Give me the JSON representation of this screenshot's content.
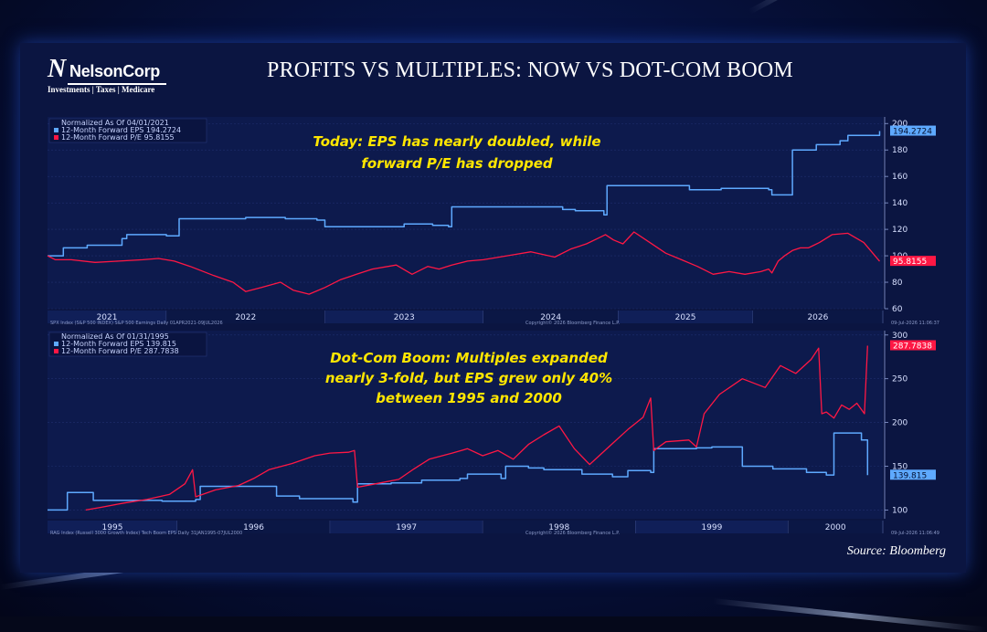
{
  "header": {
    "logo_name": "NelsonCorp",
    "logo_letter": "N",
    "logo_tagline": "Investments | Taxes | Medicare",
    "title": "PROFITS VS MULTIPLES: NOW VS DOT-COM BOOM"
  },
  "source": "Source: Bloomberg",
  "colors": {
    "eps": "#5ea9ff",
    "pe": "#ff1744",
    "annotation": "#ffe600",
    "background": "#0b1541"
  },
  "chart_data": [
    {
      "type": "line",
      "legend": {
        "heading": "Normalized As Of 04/01/2021",
        "items": [
          "12-Month Forward EPS 194.2724",
          "12-Month Forward P/E 95.8155"
        ]
      },
      "annotation": [
        "Today: EPS has nearly doubled, while",
        "forward P/E has dropped"
      ],
      "x_labels": [
        "2021",
        "2022",
        "2023",
        "2024",
        "2025",
        "2026"
      ],
      "y_ticks": [
        60,
        80,
        100,
        120,
        140,
        160,
        180,
        200
      ],
      "ylim": [
        60,
        205
      ],
      "xlim": [
        2021.25,
        2026.52
      ],
      "footer_left": "SPX Index (S&P 500 INDEX) S&P 500 Earnings Daily 01APR2021-09JUL2026",
      "footer_mid": "Copyright© 2026 Bloomberg Finance L.P.",
      "footer_right": "09-Jul-2026 11:06:37",
      "last_values": {
        "eps": "194.2724",
        "pe": "95.8155"
      },
      "series": [
        {
          "name": "12-Month Forward EPS",
          "color": "#5ea9ff",
          "step": true,
          "x": [
            2021.25,
            2021.35,
            2021.5,
            2021.72,
            2021.75,
            2022.0,
            2022.08,
            2022.5,
            2022.75,
            2022.95,
            2023.0,
            2023.5,
            2023.68,
            2023.78,
            2023.8,
            2024.3,
            2024.5,
            2024.58,
            2024.76,
            2024.78,
            2025.3,
            2025.5,
            2025.75,
            2025.8,
            2025.82,
            2025.95,
            2026.1,
            2026.25,
            2026.3,
            2026.5
          ],
          "y": [
            100,
            106,
            108,
            113,
            116,
            115,
            128,
            129,
            128,
            127,
            122,
            124,
            123,
            122,
            137,
            137,
            135,
            134,
            131,
            153,
            150,
            151,
            151,
            150,
            146,
            180,
            184,
            187,
            191,
            194.27
          ]
        },
        {
          "name": "12-Month Forward P/E",
          "color": "#ff1744",
          "step": false,
          "x": [
            2021.25,
            2021.3,
            2021.4,
            2021.55,
            2021.7,
            2021.85,
            2021.95,
            2022.05,
            2022.15,
            2022.3,
            2022.42,
            2022.5,
            2022.6,
            2022.72,
            2022.8,
            2022.9,
            2023.0,
            2023.1,
            2023.2,
            2023.3,
            2023.45,
            2023.55,
            2023.65,
            2023.72,
            2023.8,
            2023.9,
            2024.0,
            2024.1,
            2024.2,
            2024.3,
            2024.45,
            2024.55,
            2024.65,
            2024.72,
            2024.77,
            2024.82,
            2024.88,
            2024.95,
            2025.05,
            2025.15,
            2025.25,
            2025.35,
            2025.45,
            2025.55,
            2025.65,
            2025.75,
            2025.8,
            2025.82,
            2025.86,
            2025.9,
            2025.95,
            2026.0,
            2026.05,
            2026.12,
            2026.2,
            2026.3,
            2026.4,
            2026.5
          ],
          "y": [
            100,
            97,
            97,
            95,
            96,
            97,
            98,
            96,
            92,
            85,
            80,
            73,
            76,
            80,
            74,
            71,
            76,
            82,
            86,
            90,
            93,
            86,
            92,
            90,
            93,
            96,
            97,
            99,
            101,
            103,
            99,
            105,
            109,
            113,
            116,
            112,
            109,
            118,
            110,
            102,
            97,
            92,
            86,
            88,
            86,
            88,
            90,
            87,
            96,
            100,
            104,
            106,
            106,
            110,
            116,
            117,
            110,
            95.82
          ]
        }
      ]
    },
    {
      "type": "line",
      "legend": {
        "heading": "Normalized As Of 01/31/1995",
        "items": [
          "12-Month Forward EPS 139.815",
          "12-Month Forward P/E 287.7838"
        ]
      },
      "annotation": [
        "Dot-Com Boom: Multiples expanded",
        "nearly 3-fold, but EPS grew only 40%",
        "between 1995 and 2000"
      ],
      "x_labels": [
        "1995",
        "1996",
        "1997",
        "1998",
        "1999",
        "2000"
      ],
      "y_ticks": [
        100,
        150,
        200,
        250,
        300
      ],
      "ylim": [
        90,
        305
      ],
      "xlim": [
        1994.75,
        2000.22
      ],
      "footer_left": "RAG Index (Russell 3000 Growth Index) Tech Boom EPS Daily 31JAN1995-07JUL2000",
      "footer_mid": "Copyright© 2026 Bloomberg Finance L.P.",
      "footer_right": "09-Jul-2026 11:06:49",
      "last_values": {
        "eps": "139.815",
        "pe": "287.7838"
      },
      "series": [
        {
          "name": "12-Month Forward EPS",
          "color": "#5ea9ff",
          "step": true,
          "x": [
            1994.75,
            1994.87,
            1994.88,
            1995.0,
            1995.05,
            1995.5,
            1995.72,
            1995.75,
            1996.0,
            1996.25,
            1996.4,
            1996.75,
            1996.78,
            1997.0,
            1997.2,
            1997.45,
            1997.5,
            1997.72,
            1997.75,
            1997.9,
            1998.0,
            1998.25,
            1998.45,
            1998.55,
            1998.7,
            1998.72,
            1999.0,
            1999.1,
            1999.3,
            1999.5,
            1999.72,
            1999.85,
            1999.9,
            2000.08,
            2000.12
          ],
          "y": [
            100,
            100,
            120,
            120,
            111,
            110,
            112,
            127,
            127,
            116,
            113,
            109,
            130,
            131,
            134,
            136,
            141,
            136,
            150,
            148,
            146,
            141,
            138,
            145,
            143,
            170,
            171,
            172,
            150,
            147,
            143,
            140,
            188,
            180,
            139.82
          ]
        },
        {
          "name": "12-Month Forward P/E",
          "color": "#ff1744",
          "step": false,
          "x": [
            1995.0,
            1995.1,
            1995.25,
            1995.4,
            1995.55,
            1995.65,
            1995.7,
            1995.72,
            1995.85,
            1996.0,
            1996.1,
            1996.2,
            1996.35,
            1996.5,
            1996.6,
            1996.72,
            1996.76,
            1996.78,
            1996.9,
            1997.05,
            1997.15,
            1997.25,
            1997.4,
            1997.5,
            1997.6,
            1997.7,
            1997.8,
            1997.9,
            1998.0,
            1998.1,
            1998.2,
            1998.3,
            1998.45,
            1998.55,
            1998.65,
            1998.7,
            1998.72,
            1998.8,
            1998.95,
            1999.0,
            1999.05,
            1999.15,
            1999.3,
            1999.45,
            1999.55,
            1999.65,
            1999.75,
            1999.8,
            1999.82,
            1999.85,
            1999.9,
            1999.95,
            2000.0,
            2000.05,
            2000.1,
            2000.12
          ],
          "y": [
            100,
            103,
            108,
            112,
            118,
            130,
            146,
            115,
            123,
            128,
            136,
            146,
            153,
            162,
            165,
            166,
            168,
            126,
            130,
            135,
            147,
            158,
            165,
            170,
            162,
            168,
            158,
            175,
            186,
            196,
            170,
            152,
            176,
            192,
            206,
            228,
            168,
            178,
            180,
            172,
            210,
            232,
            250,
            240,
            265,
            256,
            272,
            285,
            210,
            212,
            205,
            220,
            215,
            222,
            210,
            287.78
          ]
        }
      ]
    }
  ]
}
